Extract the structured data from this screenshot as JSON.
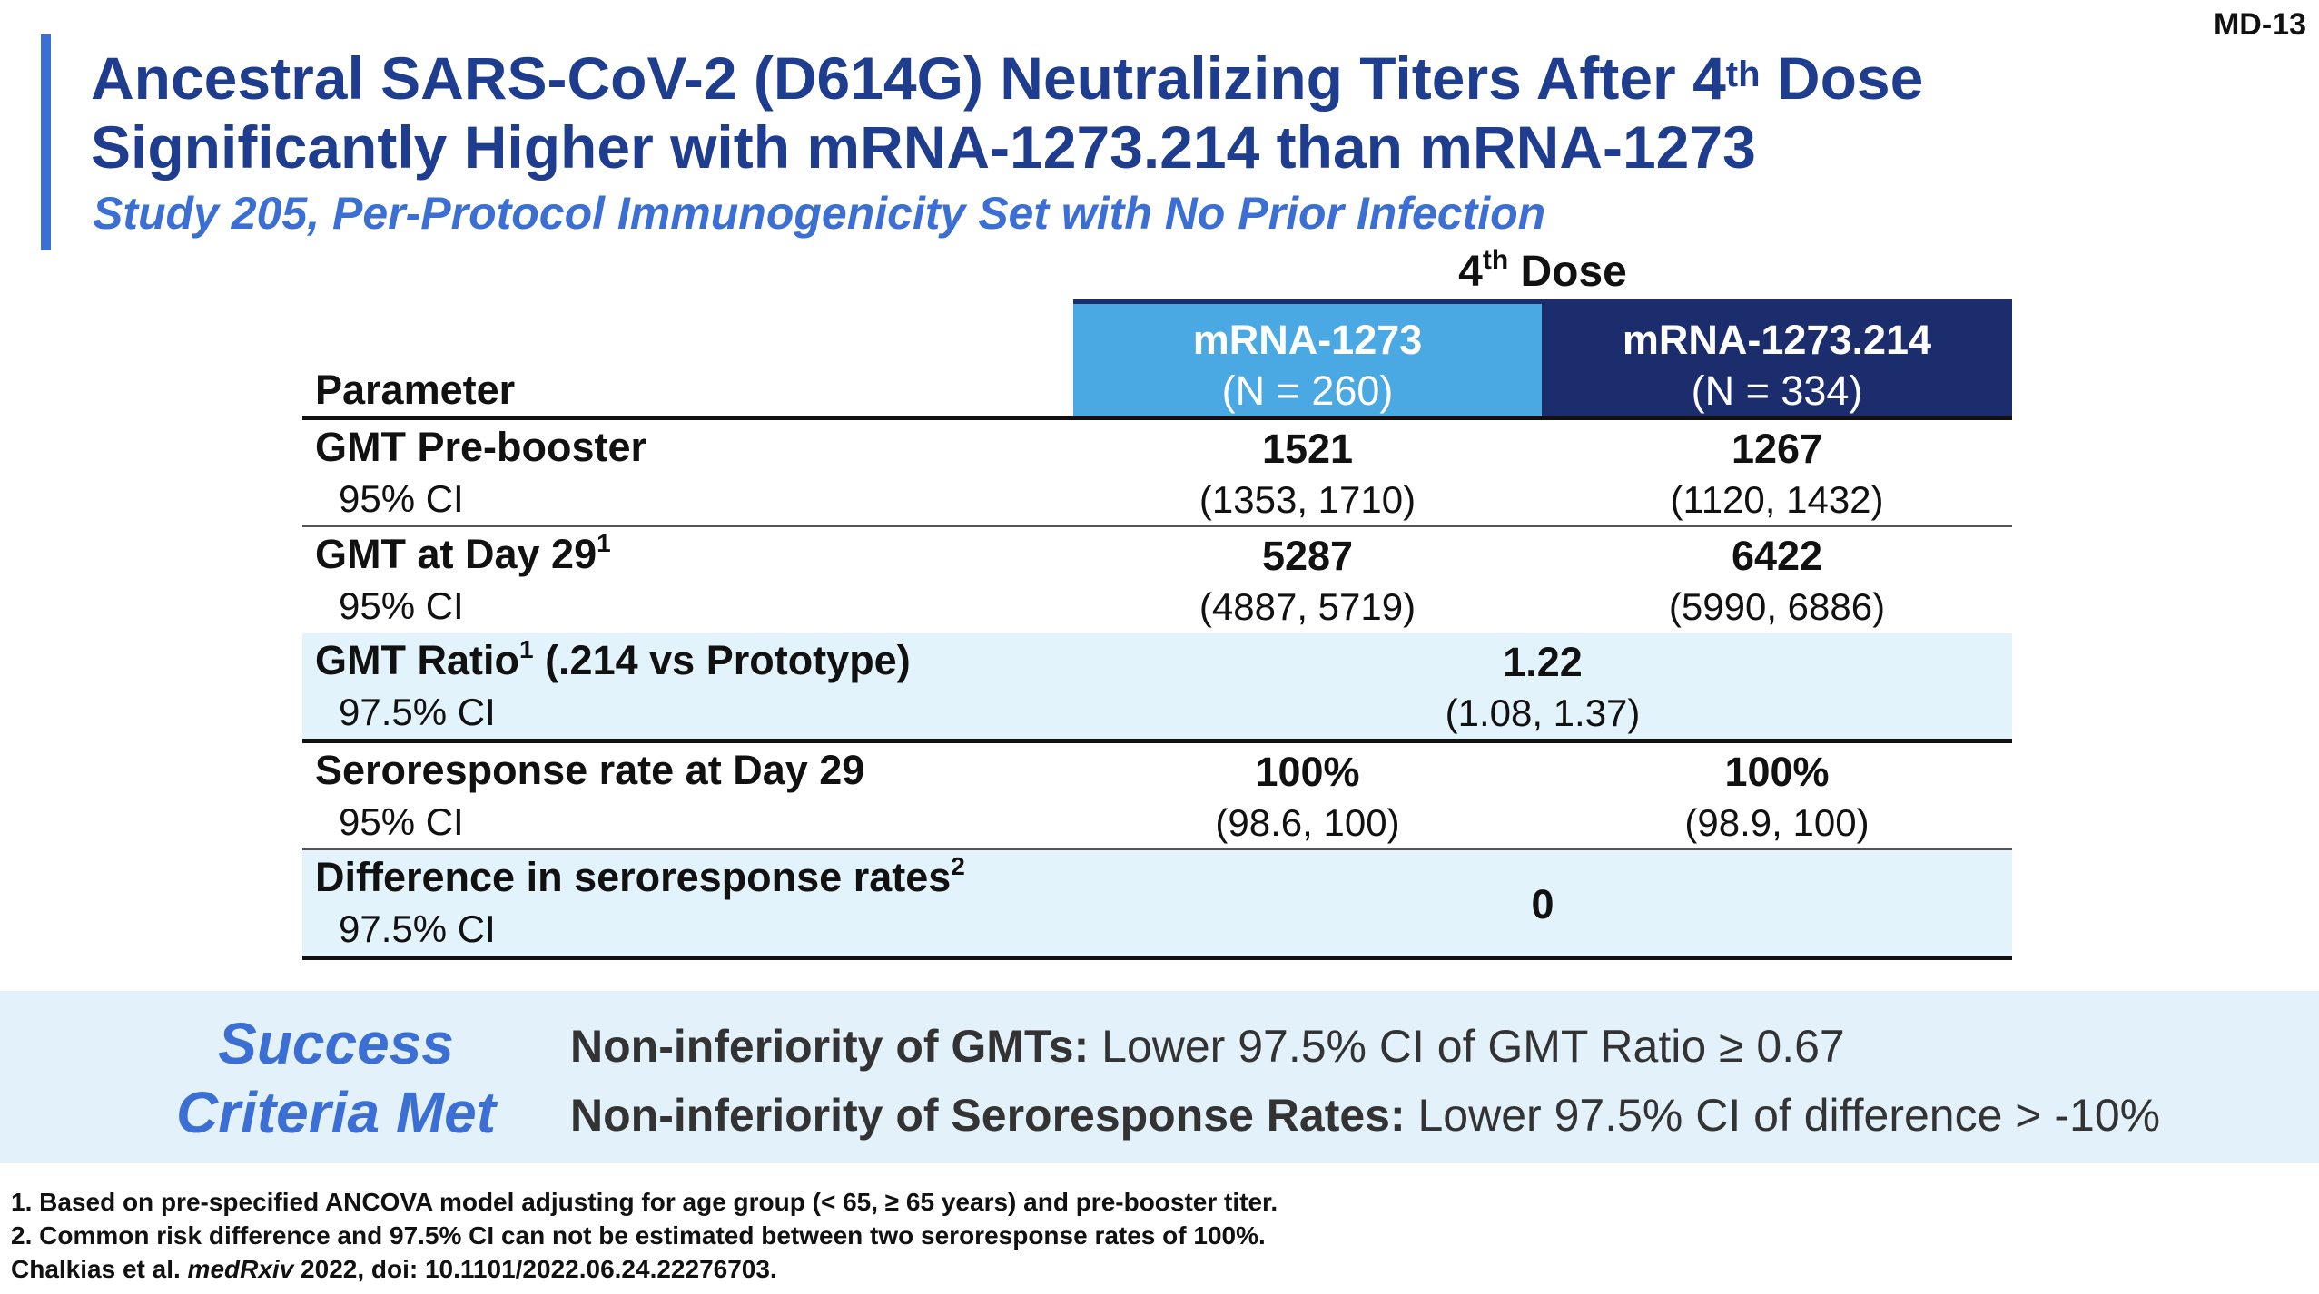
{
  "slide_id": "MD-13",
  "title": {
    "line1_prefix": "Ancestral SARS-CoV-2 (D614G) Neutralizing Titers After 4",
    "line1_sup": "th",
    "line1_suffix": " Dose",
    "line2": "Significantly Higher with mRNA-1273.214 than mRNA-1273"
  },
  "subtitle": "Study 205, Per-Protocol Immunogenicity Set with No Prior Infection",
  "table": {
    "dose_header_prefix": "4",
    "dose_header_sup": "th",
    "dose_header_suffix": " Dose",
    "param_header": "Parameter",
    "columns": [
      {
        "name": "mRNA-1273",
        "n": "(N = 260)"
      },
      {
        "name": "mRNA-1273.214",
        "n": "(N = 334)"
      }
    ],
    "rows": [
      {
        "label": "GMT Pre-booster",
        "sup": "",
        "ci_label": "95% CI",
        "v1": "1521",
        "ci1": "(1353, 1710)",
        "v2": "1267",
        "ci2": "(1120, 1432)"
      },
      {
        "label": "GMT at Day 29",
        "sup": "1",
        "ci_label": "95% CI",
        "v1": "5287",
        "ci1": "(4887, 5719)",
        "v2": "6422",
        "ci2": "(5990, 6886)"
      },
      {
        "label_prefix": "GMT Ratio",
        "sup": "1",
        "label_suffix": " (.214 vs Prototype)",
        "ci_label": "97.5% CI",
        "value": "1.22",
        "ci": "(1.08, 1.37)"
      },
      {
        "label": "Seroresponse rate at Day 29",
        "sup": "",
        "ci_label": "95% CI",
        "v1": "100%",
        "ci1": "(98.6, 100)",
        "v2": "100%",
        "ci2": "(98.9, 100)"
      },
      {
        "label": "Difference in seroresponse rates",
        "sup": "2",
        "ci_label": "97.5% CI",
        "value": "0"
      }
    ]
  },
  "success": {
    "title_line1": "Success",
    "title_line2": "Criteria Met",
    "criteria": [
      {
        "bold": "Non-inferiority of GMTs:",
        "text": " Lower 97.5% CI of GMT Ratio ≥ 0.67"
      },
      {
        "bold": "Non-inferiority of Seroresponse Rates:",
        "text": " Lower 97.5% CI of difference > -10%"
      }
    ]
  },
  "footnotes": {
    "f1": "1. Based on pre-specified ANCOVA model adjusting for age group (< 65, ≥ 65 years) and pre-booster titer.",
    "f2": "2. Common risk difference and 97.5% CI can not be estimated between two seroresponse rates of 100%.",
    "f3_prefix": "Chalkias et al. ",
    "f3_journal": "medRxiv",
    "f3_suffix": " 2022, doi: 10.1101/2022.06.24.22276703."
  },
  "colors": {
    "title": "#1f3d8f",
    "accent": "#3b6fd4",
    "col1_header": "#4aa8e2",
    "col2_header": "#1c2d6e",
    "shade": "#e3f3fc"
  }
}
